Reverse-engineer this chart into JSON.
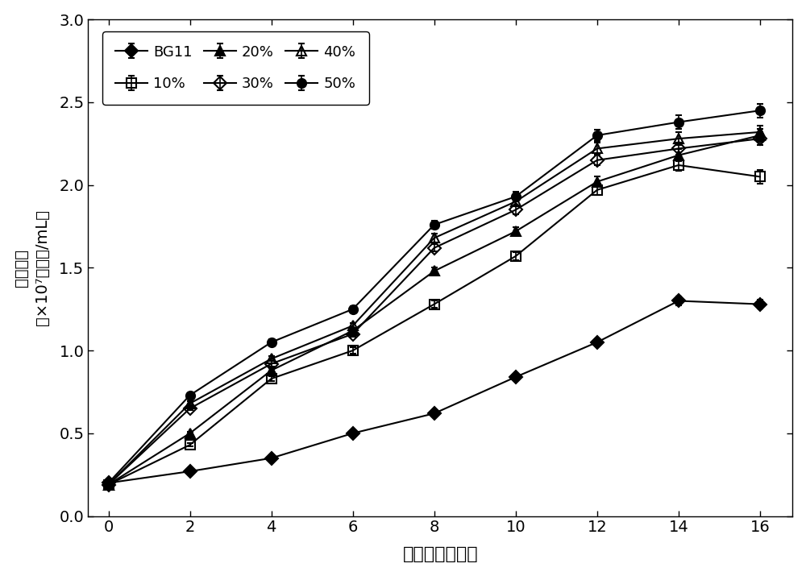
{
  "x": [
    0,
    2,
    4,
    6,
    8,
    10,
    12,
    14,
    16
  ],
  "series": {
    "BG11": {
      "y": [
        0.2,
        0.27,
        0.35,
        0.5,
        0.62,
        0.84,
        1.05,
        1.3,
        1.28
      ],
      "yerr": [
        0.005,
        0.008,
        0.01,
        0.012,
        0.015,
        0.018,
        0.02,
        0.025,
        0.025
      ],
      "marker": "D",
      "filled": true,
      "label": "BG11"
    },
    "10%": {
      "y": [
        0.19,
        0.43,
        0.83,
        1.0,
        1.28,
        1.57,
        1.97,
        2.12,
        2.05
      ],
      "yerr": [
        0.005,
        0.01,
        0.015,
        0.018,
        0.02,
        0.025,
        0.03,
        0.035,
        0.04
      ],
      "marker": "s",
      "filled": false,
      "label": "10%"
    },
    "20%": {
      "y": [
        0.19,
        0.5,
        0.88,
        1.12,
        1.48,
        1.72,
        2.02,
        2.18,
        2.3
      ],
      "yerr": [
        0.005,
        0.01,
        0.015,
        0.018,
        0.022,
        0.025,
        0.03,
        0.035,
        0.038
      ],
      "marker": "^",
      "filled": true,
      "label": "20%"
    },
    "30%": {
      "y": [
        0.19,
        0.65,
        0.92,
        1.1,
        1.62,
        1.85,
        2.15,
        2.22,
        2.28
      ],
      "yerr": [
        0.005,
        0.012,
        0.015,
        0.018,
        0.022,
        0.025,
        0.032,
        0.035,
        0.038
      ],
      "marker": "D",
      "filled": false,
      "label": "30%"
    },
    "40%": {
      "y": [
        0.19,
        0.68,
        0.95,
        1.15,
        1.68,
        1.9,
        2.22,
        2.28,
        2.32
      ],
      "yerr": [
        0.005,
        0.012,
        0.015,
        0.018,
        0.025,
        0.028,
        0.035,
        0.038,
        0.04
      ],
      "marker": "^",
      "filled": false,
      "label": "40%"
    },
    "50%": {
      "y": [
        0.2,
        0.73,
        1.05,
        1.25,
        1.76,
        1.93,
        2.3,
        2.38,
        2.45
      ],
      "yerr": [
        0.005,
        0.012,
        0.018,
        0.02,
        0.025,
        0.028,
        0.035,
        0.04,
        0.042
      ],
      "marker": "o",
      "filled": true,
      "label": "50%"
    }
  },
  "xlabel": "培养时间（天）",
  "ylabel_line1": "细胞密度",
  "ylabel_line2": "（×10⁷个细胞/mL）",
  "xlim": [
    -0.5,
    16.8
  ],
  "ylim": [
    0,
    3.0
  ],
  "xticks": [
    0,
    2,
    4,
    6,
    8,
    10,
    12,
    14,
    16
  ],
  "yticks": [
    0,
    0.5,
    1.0,
    1.5,
    2.0,
    2.5,
    3.0
  ],
  "legend_order": [
    "BG11",
    "10%",
    "20%",
    "30%",
    "40%",
    "50%"
  ],
  "figsize": [
    10.0,
    7.15
  ],
  "dpi": 100
}
